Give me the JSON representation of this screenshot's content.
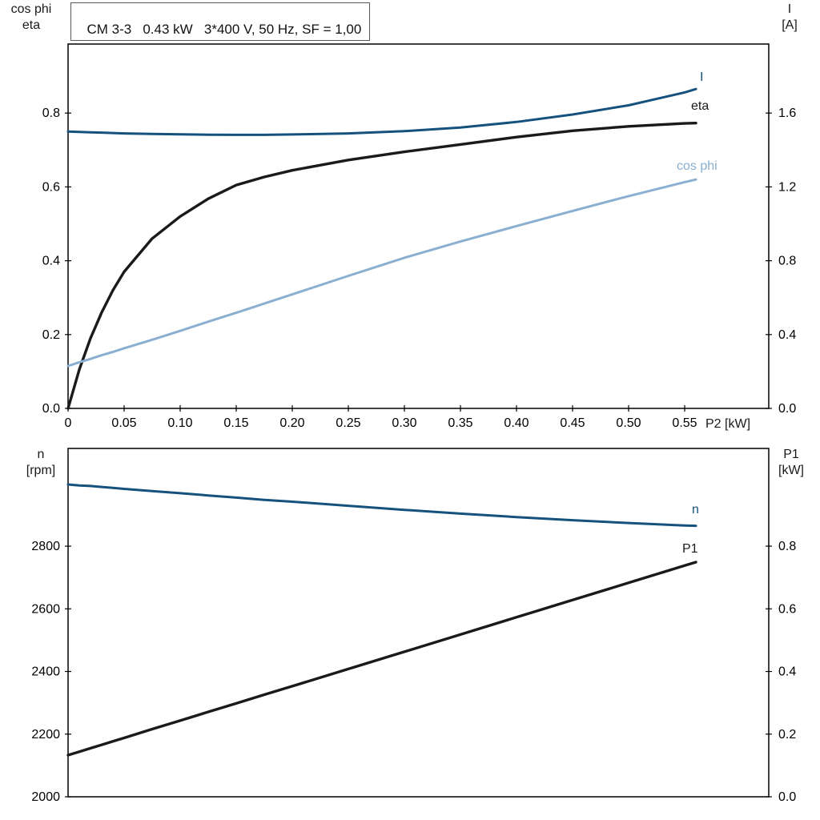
{
  "header": {
    "title": "CM 3-3   0.43 kW   3*400 V, 50 Hz, SF = 1,00"
  },
  "axis_titles": {
    "top_left": "cos phi\neta",
    "top_right": "I\n[A]",
    "x": "P2 [kW]",
    "bottom_left": "n\n[rpm]",
    "bottom_right": "P1\n[kW]"
  },
  "curve_labels": {
    "i": "I",
    "eta": "eta",
    "cos_phi": "cos phi",
    "n": "n",
    "p1": "P1"
  },
  "colors": {
    "dark_blue": "#15517d",
    "light_blue": "#8aafd0",
    "black": "#1a1a1a",
    "frame": "#000000"
  },
  "chart_data": [
    {
      "type": "line",
      "title": "CM 3-3 0.43 kW 3*400 V, 50 Hz, SF = 1,00",
      "xlabel": "P2 [kW]",
      "ylabel_left": "cos phi / eta",
      "ylabel_right": "I [A]",
      "legend_position": "curve-end-labels",
      "grid": false,
      "x_range": [
        0,
        0.625
      ],
      "y_left_range": [
        0,
        0.987
      ],
      "y_right_range": [
        0,
        1.974
      ],
      "x_ticks": {
        "values": [
          0,
          0.05,
          0.1,
          0.15,
          0.2,
          0.25,
          0.3,
          0.35,
          0.4,
          0.45,
          0.5,
          0.55
        ],
        "labels": [
          "0",
          "0.05",
          "0.10",
          "0.15",
          "0.20",
          "0.25",
          "0.30",
          "0.35",
          "0.40",
          "0.45",
          "0.50",
          "0.55"
        ]
      },
      "y_left_ticks": {
        "values": [
          0,
          0.2,
          0.4,
          0.6,
          0.8
        ],
        "labels": [
          "0.0",
          "0.2",
          "0.4",
          "0.6",
          "0.8"
        ]
      },
      "y_right_ticks": {
        "values": [
          0,
          0.4,
          0.8,
          1.2,
          1.6
        ],
        "labels": [
          "0.0",
          "0.4",
          "0.8",
          "1.2",
          "1.6"
        ]
      },
      "x": [
        0,
        0.01,
        0.02,
        0.03,
        0.04,
        0.05,
        0.075,
        0.1,
        0.125,
        0.15,
        0.175,
        0.2,
        0.25,
        0.3,
        0.35,
        0.4,
        0.45,
        0.5,
        0.55,
        0.56
      ],
      "series": [
        {
          "name": "I",
          "axis": "right",
          "color_key": "dark_blue",
          "width": 3,
          "values": [
            1.5,
            1.498,
            1.496,
            1.494,
            1.492,
            1.49,
            1.487,
            1.485,
            1.483,
            1.482,
            1.482,
            1.484,
            1.49,
            1.502,
            1.522,
            1.552,
            1.592,
            1.642,
            1.712,
            1.73
          ]
        },
        {
          "name": "eta",
          "axis": "left",
          "color_key": "black",
          "width": 3.4,
          "values": [
            0,
            0.105,
            0.19,
            0.26,
            0.32,
            0.37,
            0.46,
            0.52,
            0.568,
            0.605,
            0.627,
            0.645,
            0.673,
            0.695,
            0.715,
            0.735,
            0.752,
            0.764,
            0.772,
            0.773
          ]
        },
        {
          "name": "cos phi",
          "axis": "left",
          "color_key": "light_blue",
          "width": 3,
          "values": [
            0.115,
            0.125,
            0.134,
            0.144,
            0.153,
            0.163,
            0.186,
            0.21,
            0.235,
            0.259,
            0.284,
            0.309,
            0.359,
            0.408,
            0.452,
            0.494,
            0.535,
            0.575,
            0.613,
            0.62
          ]
        }
      ]
    },
    {
      "type": "line",
      "title": "",
      "xlabel": "P2 [kW]",
      "ylabel_left": "n [rpm]",
      "ylabel_right": "P1 [kW]",
      "legend_position": "curve-end-labels",
      "grid": false,
      "x_range": [
        0,
        0.625
      ],
      "y_left_range": [
        2000,
        3112
      ],
      "y_right_range": [
        0,
        1.112
      ],
      "y_left_ticks": {
        "values": [
          2000,
          2200,
          2400,
          2600,
          2800
        ],
        "labels": [
          "2000",
          "2200",
          "2400",
          "2600",
          "2800"
        ]
      },
      "y_right_ticks": {
        "values": [
          0,
          0.2,
          0.4,
          0.6,
          0.8
        ],
        "labels": [
          "0.0",
          "0.2",
          "0.4",
          "0.6",
          "0.8"
        ]
      },
      "x": [
        0,
        0.01,
        0.02,
        0.03,
        0.04,
        0.05,
        0.075,
        0.1,
        0.125,
        0.15,
        0.175,
        0.2,
        0.25,
        0.3,
        0.35,
        0.4,
        0.45,
        0.5,
        0.55,
        0.56
      ],
      "series": [
        {
          "name": "n",
          "axis": "left",
          "color_key": "dark_blue",
          "width": 3,
          "values": [
            2997,
            2994,
            2992,
            2989,
            2986,
            2983,
            2976,
            2969,
            2962,
            2955,
            2948,
            2942,
            2929,
            2916,
            2904,
            2893,
            2883,
            2874,
            2866,
            2865
          ]
        },
        {
          "name": "P1",
          "axis": "right",
          "color_key": "black",
          "width": 3.4,
          "values": [
            0.133,
            0.144,
            0.155,
            0.166,
            0.177,
            0.188,
            0.216,
            0.243,
            0.271,
            0.298,
            0.326,
            0.353,
            0.408,
            0.463,
            0.518,
            0.573,
            0.628,
            0.683,
            0.738,
            0.749
          ]
        }
      ]
    }
  ]
}
